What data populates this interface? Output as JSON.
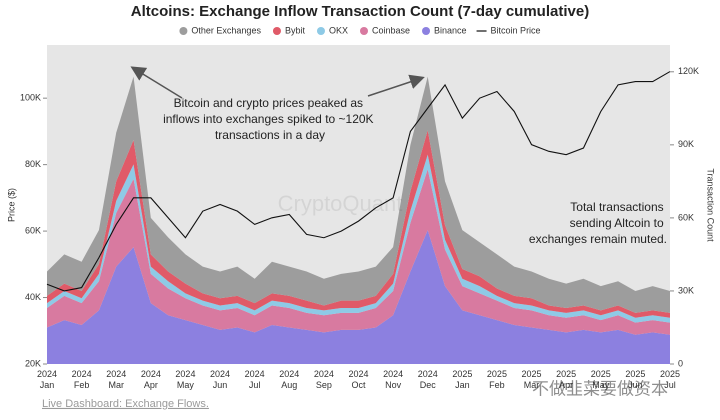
{
  "chart_data": {
    "type": "stacked_area",
    "title": "Altcoins: Exchange Inflow Transaction Count (7-day cumulative)",
    "y_label": "Price ($)",
    "y2_label": "Transaction Count",
    "categories": [
      "2024 Jan",
      null,
      "2024 Feb",
      null,
      "2024 Mar",
      null,
      "2024 Apr",
      null,
      "2024 May",
      null,
      "2024 Jun",
      null,
      "2024 Jul",
      null,
      "2024 Aug",
      null,
      "2024 Sep",
      null,
      "2024 Oct",
      null,
      "2024 Nov",
      null,
      "2024 Dec",
      null,
      "2025 Jan",
      null,
      "2025 Feb",
      null,
      "2025 Mar",
      null,
      "2025 Apr",
      null,
      "2025 May",
      null,
      "2025 Jun",
      null,
      "2025 Jul"
    ],
    "series": [
      {
        "name": "Other Exchanges",
        "color": "#9d9d9d",
        "axis": "y2",
        "values": [
          10000,
          12000,
          12000,
          14000,
          20000,
          26000,
          15000,
          14000,
          12000,
          11000,
          11000,
          12000,
          10000,
          13000,
          12000,
          12000,
          11000,
          11000,
          12000,
          12000,
          11000,
          19000,
          22000,
          18000,
          16000,
          14000,
          14000,
          12000,
          11000,
          11000,
          10000,
          11000,
          10000,
          10000,
          9000,
          10000,
          9000
        ]
      },
      {
        "name": "Bybit",
        "color": "#e05a68",
        "axis": "y2",
        "values": [
          3000,
          3000,
          3000,
          4000,
          8000,
          10000,
          5000,
          4000,
          4000,
          3000,
          3000,
          3000,
          3000,
          3000,
          3000,
          3000,
          2000,
          3000,
          3000,
          3000,
          4000,
          8000,
          10000,
          6000,
          4000,
          4000,
          3000,
          3000,
          3000,
          2000,
          2000,
          2000,
          2000,
          2000,
          2000,
          2000,
          2000
        ]
      },
      {
        "name": "OKX",
        "color": "#8ecae6",
        "axis": "y2",
        "values": [
          2000,
          2000,
          2000,
          3000,
          5000,
          6000,
          3000,
          3000,
          2000,
          2000,
          2000,
          2000,
          2000,
          2000,
          2000,
          2000,
          2000,
          2000,
          2000,
          2000,
          3000,
          5000,
          6000,
          4000,
          3000,
          3000,
          2000,
          2000,
          2000,
          2000,
          2000,
          2000,
          2000,
          2000,
          2000,
          2000,
          2000
        ]
      },
      {
        "name": "Coinbase",
        "color": "#d87aa0",
        "axis": "y2",
        "values": [
          8000,
          10000,
          9000,
          12000,
          22000,
          28000,
          12000,
          11000,
          9000,
          8000,
          8000,
          8000,
          7000,
          8000,
          8000,
          7000,
          7000,
          7000,
          7000,
          8000,
          10000,
          20000,
          25000,
          15000,
          10000,
          9000,
          8000,
          7000,
          7000,
          6000,
          6000,
          6000,
          5000,
          6000,
          5000,
          5000,
          5000
        ]
      },
      {
        "name": "Binance",
        "color": "#8c80e0",
        "axis": "y2",
        "values": [
          15000,
          18000,
          16000,
          22000,
          40000,
          48000,
          25000,
          20000,
          18000,
          16000,
          14000,
          15000,
          13000,
          16000,
          15000,
          14000,
          13000,
          14000,
          14000,
          15000,
          20000,
          38000,
          55000,
          32000,
          22000,
          20000,
          18000,
          16000,
          15000,
          14000,
          13000,
          14000,
          13000,
          14000,
          12000,
          13000,
          12000
        ]
      }
    ],
    "line": {
      "name": "Bitcoin Price",
      "color": "#111111",
      "values": [
        44000,
        42000,
        43000,
        52000,
        62000,
        70000,
        70000,
        64000,
        58000,
        66000,
        68000,
        66000,
        62000,
        64000,
        65000,
        59000,
        58000,
        60000,
        63000,
        67000,
        70000,
        90000,
        97000,
        104000,
        94000,
        100000,
        102000,
        96000,
        86000,
        84000,
        83000,
        85000,
        96000,
        104000,
        105000,
        105000,
        108000
      ]
    },
    "ylim": [
      20000,
      116000
    ],
    "yticks": [
      {
        "value": 20000,
        "label": "20K"
      },
      {
        "value": 40000,
        "label": "40K"
      },
      {
        "value": 60000,
        "label": "60K"
      },
      {
        "value": 80000,
        "label": "80K"
      },
      {
        "value": 100000,
        "label": "100K"
      }
    ],
    "y2lim": [
      0,
      131000
    ],
    "y2ticks": [
      0,
      {
        "value": 30000,
        "label": "30K"
      },
      {
        "value": 60000,
        "label": "60K"
      },
      {
        "value": 90000,
        "label": "90K"
      },
      {
        "value": 120000,
        "label": "120K"
      }
    ],
    "annotations": [
      {
        "lines": [
          "Bitcoin and crypto prices peaked as",
          "inflows into exchanges spiked to ~120K",
          "transactions in a day"
        ]
      },
      {
        "lines": [
          "Total transactions",
          "sending Altcoin  to",
          "exchanges remain muted."
        ]
      }
    ],
    "watermarks": [
      "CryptoQuant",
      "不做韭菜要做资本"
    ],
    "footer_link": "Live Dashboard: Exchange Flows."
  }
}
